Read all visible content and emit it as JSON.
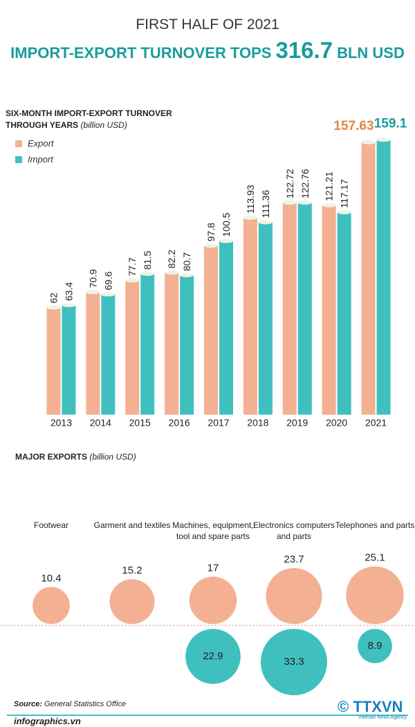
{
  "header": {
    "kicker": "FIRST HALF OF 2021",
    "headline": "IMPORT-EXPORT TURNOVER TOPS",
    "figure": "316.7",
    "unit": "BLN USD"
  },
  "chart_data": [
    {
      "type": "bar",
      "title": "SIX-MONTH IMPORT-EXPORT TURNOVER THROUGH YEARS",
      "subtitle": "(billion USD)",
      "categories": [
        "2013",
        "2014",
        "2015",
        "2016",
        "2017",
        "2018",
        "2019",
        "2020",
        "2021"
      ],
      "series": [
        {
          "name": "Export",
          "color": "#f3b092",
          "values": [
            62,
            70.9,
            77.7,
            82.2,
            97.8,
            113.93,
            122.72,
            121.21,
            157.63
          ]
        },
        {
          "name": "Import",
          "color": "#3fc0bf",
          "values": [
            63.4,
            69.6,
            81.5,
            80.7,
            100.5,
            111.36,
            122.76,
            117.17,
            159.1
          ]
        }
      ],
      "ylim": [
        0,
        160
      ]
    },
    {
      "type": "bubble",
      "title": "MAJOR EXPORTS",
      "subtitle": "(billion USD)",
      "categories": [
        "Footwear",
        "Garment and textiles",
        "Machines, equipment, tool and spare parts",
        "Electronics computers and parts",
        "Telephones and parts"
      ],
      "series": [
        {
          "color": "#f3b092",
          "values": [
            10.4,
            15.2,
            17,
            23.7,
            25.1
          ]
        },
        {
          "color": "#3fc0bf",
          "values": [
            null,
            null,
            22.9,
            33.3,
            8.9
          ]
        }
      ]
    }
  ],
  "footer": {
    "source_label": "Source:",
    "source": "General Statistics Office",
    "site": "infographics.vn",
    "logo": "TTXVN",
    "agency": "Vietnam News Agency"
  }
}
